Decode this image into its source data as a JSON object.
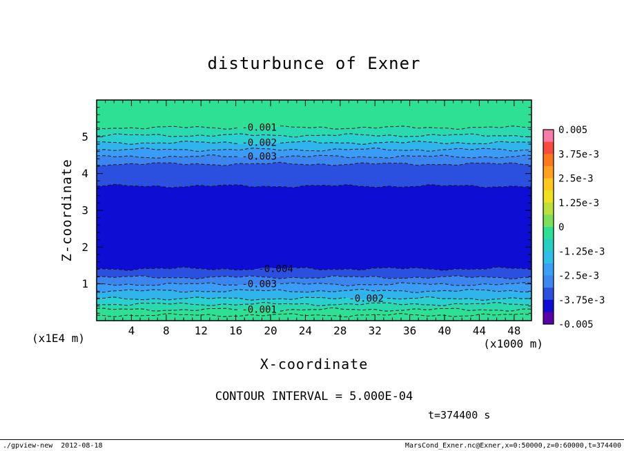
{
  "chart_data": {
    "type": "filled_contour",
    "title": "disturbunce of Exner",
    "xlabel": "X-coordinate",
    "ylabel": "Z-coordinate",
    "x_unit": "(x1000 m)",
    "y_unit": "(x1E4 m)",
    "xlim": [
      0,
      50
    ],
    "ylim": [
      0,
      6
    ],
    "xticks": [
      4,
      8,
      12,
      16,
      20,
      24,
      28,
      32,
      36,
      40,
      44,
      48
    ],
    "xtick_major": 4,
    "xtick_minor": 1,
    "yticks": [
      1,
      2,
      3,
      4,
      5
    ],
    "ytick_minor": 0.2,
    "contour_interval": "5.000E-04",
    "grid": false,
    "legend_position": "right-colorbar",
    "contours": [
      {
        "z": 5.25,
        "level": -0.001,
        "label": "-0.001",
        "label_x": 18.7
      },
      {
        "z": 5.04,
        "level": -0.0015
      },
      {
        "z": 4.84,
        "level": -0.002,
        "label": "-0.002",
        "label_x": 18.7
      },
      {
        "z": 4.65,
        "level": -0.0025
      },
      {
        "z": 4.46,
        "level": -0.003,
        "label": "-0.003",
        "label_x": 18.7
      },
      {
        "z": 4.26,
        "level": -0.0035
      },
      {
        "z": 3.66,
        "level": -0.004
      },
      {
        "z": 1.41,
        "level": -0.004,
        "label": "-0.004",
        "label_x": 20.6
      },
      {
        "z": 1.18,
        "level": -0.0035
      },
      {
        "z": 0.99,
        "level": -0.003,
        "label": "-0.003",
        "label_x": 18.7
      },
      {
        "z": 0.81,
        "level": -0.0025
      },
      {
        "z": 0.6,
        "level": -0.002,
        "label": "-0.002",
        "label_x": 31.0
      },
      {
        "z": 0.45,
        "level": -0.0015
      },
      {
        "z": 0.3,
        "level": -0.001,
        "label": "-0.001",
        "label_x": 18.7
      },
      {
        "z": 0.15,
        "level": -0.0005
      }
    ],
    "bands": [
      {
        "top": 6.0,
        "bottom": 5.25,
        "color": "#2EE093"
      },
      {
        "top": 5.25,
        "bottom": 5.04,
        "color": "#2BD9AE"
      },
      {
        "top": 5.04,
        "bottom": 4.84,
        "color": "#2ACFD0"
      },
      {
        "top": 4.84,
        "bottom": 4.65,
        "color": "#30B4EC"
      },
      {
        "top": 4.65,
        "bottom": 4.46,
        "color": "#3A9CF6"
      },
      {
        "top": 4.46,
        "bottom": 4.26,
        "color": "#3C85EE"
      },
      {
        "top": 4.26,
        "bottom": 3.66,
        "color": "#2B50E0"
      },
      {
        "top": 3.66,
        "bottom": 1.41,
        "color": "#0D0DD4"
      },
      {
        "top": 1.41,
        "bottom": 1.18,
        "color": "#2B50E0"
      },
      {
        "top": 1.18,
        "bottom": 0.99,
        "color": "#3C85EE"
      },
      {
        "top": 0.99,
        "bottom": 0.81,
        "color": "#3A9CF6"
      },
      {
        "top": 0.81,
        "bottom": 0.6,
        "color": "#30B4EC"
      },
      {
        "top": 0.6,
        "bottom": 0.45,
        "color": "#2ACFD0"
      },
      {
        "top": 0.45,
        "bottom": 0.3,
        "color": "#2BD9AE"
      },
      {
        "top": 0.3,
        "bottom": 0.0,
        "color": "#2EE093"
      }
    ],
    "colorbar": {
      "labels": [
        "0.005",
        "3.75e-3",
        "2.5e-3",
        "1.25e-3",
        "0",
        "-1.25e-3",
        "-2.5e-3",
        "-3.75e-3",
        "-0.005"
      ],
      "colors": [
        "#F97CA8",
        "#FA4B3C",
        "#FF781E",
        "#FFA01E",
        "#FFC81E",
        "#F0E020",
        "#BCE03A",
        "#7CE05A",
        "#2EE093",
        "#2ACFC4",
        "#30BFE6",
        "#3AA0F5",
        "#3E86F0",
        "#2B50E0",
        "#0D0DD4",
        "#5A00A8"
      ]
    }
  },
  "annotations": {
    "contour_interval_text": "CONTOUR INTERVAL = 5.000E-04",
    "time_text": "t=374400 s",
    "footer_left": "./gpview-new  2012-08-18",
    "footer_right": "MarsCond_Exner.nc@Exner,x=0:50000,z=0:60000,t=374400"
  }
}
